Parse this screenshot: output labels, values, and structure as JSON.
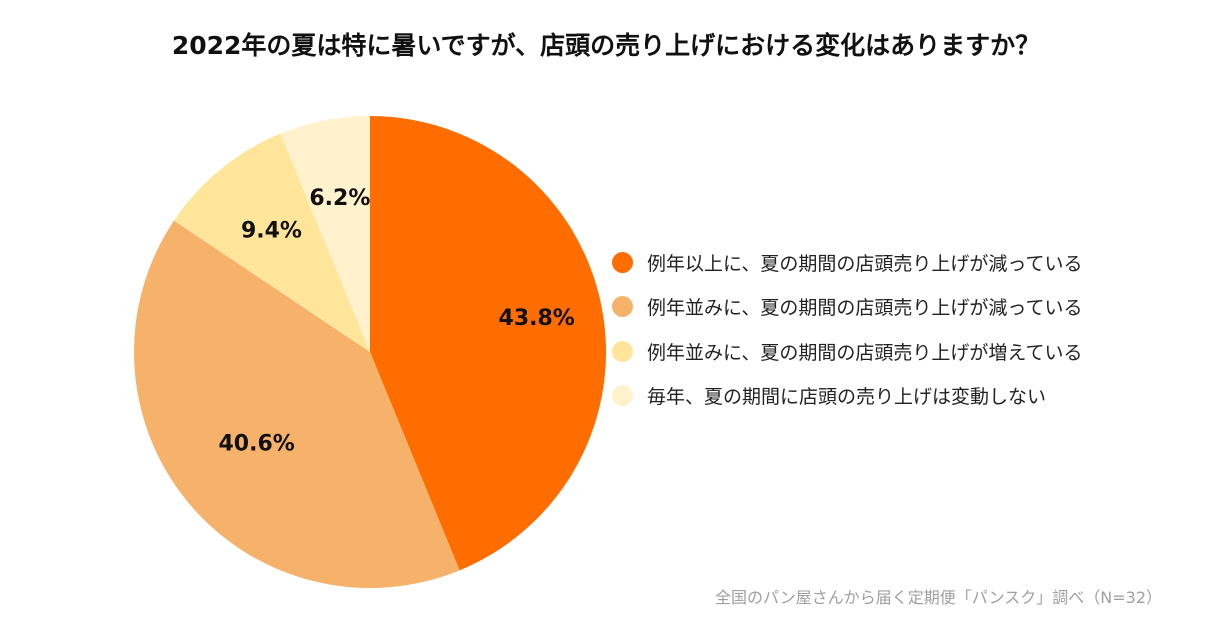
{
  "chart_data": {
    "type": "pie",
    "title": "2022年の夏は特に暑いですが、店頭の売り上げにおける変化はありますか？",
    "slices": [
      {
        "label": "例年以上に、夏の期間の店頭売り上げが減っている",
        "value": 43.8,
        "value_label": "43.8%",
        "color": "#FF6D01"
      },
      {
        "label": "例年並みに、夏の期間の店頭売り上げが減っている",
        "value": 40.6,
        "value_label": "40.6%",
        "color": "#F6B26B"
      },
      {
        "label": "例年並みに、夏の期間の店頭売り上げが増えている",
        "value": 9.4,
        "value_label": "9.4%",
        "color": "#FFE599"
      },
      {
        "label": "毎年、夏の期間に店頭の売り上げは変動しない",
        "value": 6.2,
        "value_label": "6.2%",
        "color": "#FFF2CC"
      }
    ],
    "legend_position": "right",
    "start_angle": "12 o'clock",
    "direction": "clockwise"
  },
  "source_note": "全国のパン屋さんから届く定期便「パンスク」調べ（N=32）"
}
